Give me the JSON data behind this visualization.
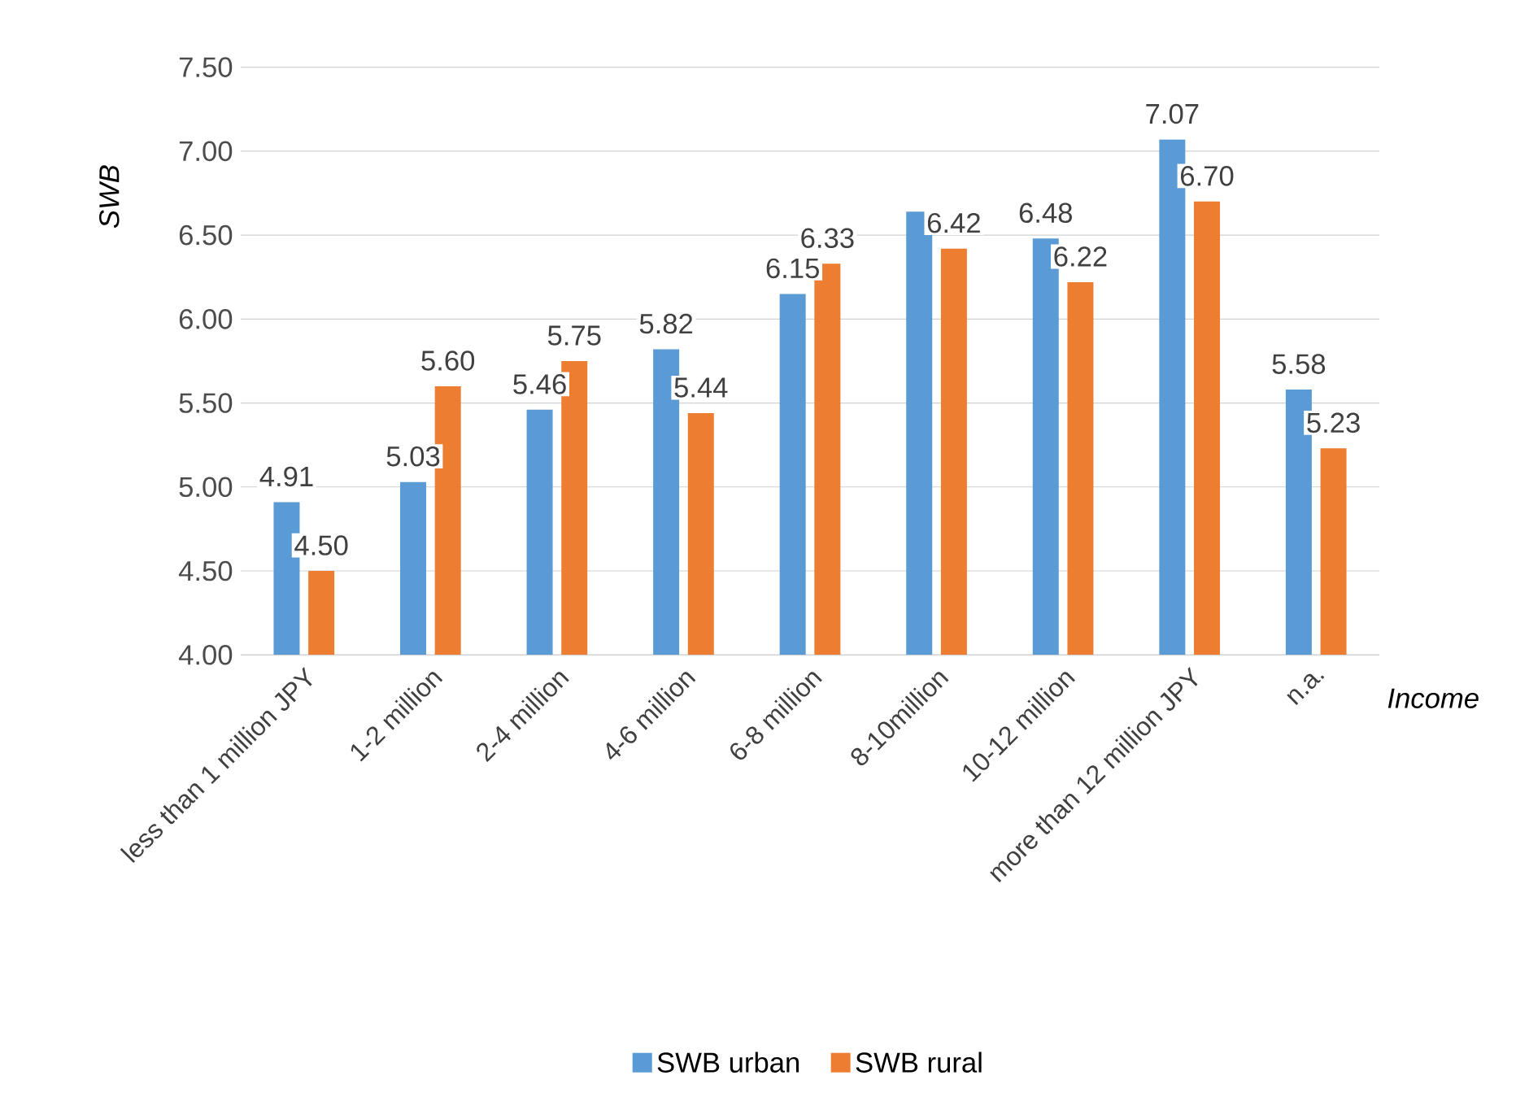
{
  "chart_data": {
    "type": "bar",
    "xlabel": "Income",
    "ylabel": "SWB",
    "categories": [
      "less than 1 million JPY",
      "1-2 million",
      "2-4 million",
      "4-6 million",
      "6-8 million",
      "8-10million",
      "10-12 million",
      "more than 12 million JPY",
      "n.a."
    ],
    "series": [
      {
        "name": "SWB urban",
        "color": "#5b9bd5",
        "values": [
          4.91,
          5.03,
          5.46,
          5.82,
          6.15,
          6.64,
          6.48,
          7.07,
          5.58
        ],
        "value_labels": [
          "4.91",
          "5.03",
          "5.46",
          "5.82",
          "6.15",
          null,
          "6.48",
          "7.07",
          "5.58"
        ]
      },
      {
        "name": "SWB rural",
        "color": "#ed7d31",
        "values": [
          4.5,
          5.6,
          5.75,
          5.44,
          6.33,
          6.42,
          6.22,
          6.7,
          5.23
        ],
        "value_labels": [
          "4.50",
          "5.60",
          "5.75",
          "5.44",
          "6.33",
          "6.42",
          "6.22",
          "6.70",
          "5.23"
        ]
      }
    ],
    "ylim": [
      4,
      7.5
    ],
    "yticks": [
      {
        "value": 4,
        "label": "4.00"
      },
      {
        "value": 4.5,
        "label": "4.50"
      },
      {
        "value": 5,
        "label": "5.00"
      },
      {
        "value": 5.5,
        "label": "5.50"
      },
      {
        "value": 6,
        "label": "6.00"
      },
      {
        "value": 6.5,
        "label": "6.50"
      },
      {
        "value": 7,
        "label": "7.00"
      },
      {
        "value": 7.5,
        "label": "7.50"
      }
    ],
    "grid": "y",
    "legend": "bottom"
  }
}
